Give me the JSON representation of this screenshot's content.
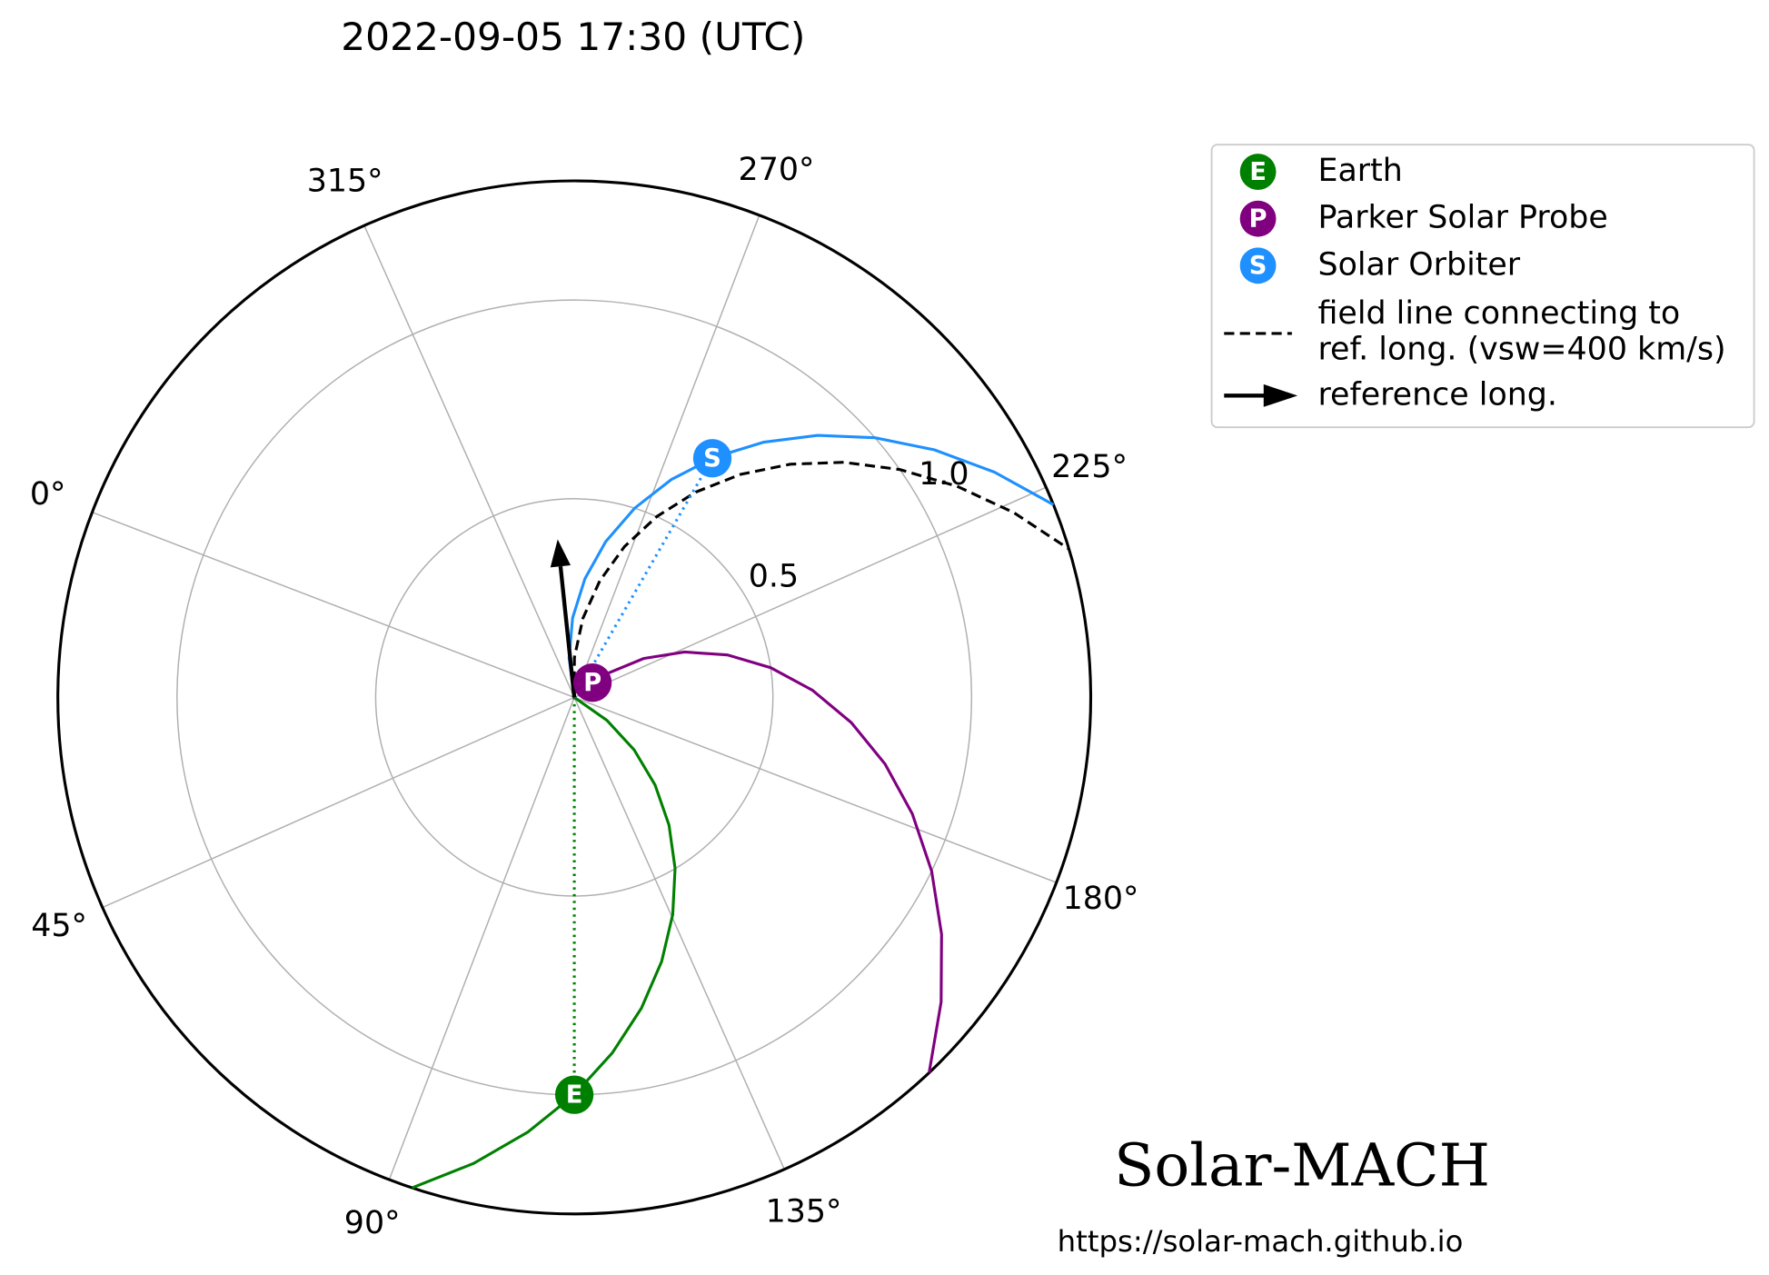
{
  "chart_data": {
    "type": "polar",
    "title": "2022-09-05 17:30 (UTC)",
    "theta_offset": 159,
    "theta_direction": "counterclockwise",
    "rlim": [
      0,
      1.3
    ],
    "rticks": [
      0.5,
      {
        "value": 1,
        "label": "1.0"
      }
    ],
    "thetaticks": [
      {
        "value": 0,
        "label": "0°"
      },
      {
        "value": 45,
        "label": "45°"
      },
      {
        "value": 90,
        "label": "90°"
      },
      {
        "value": 135,
        "label": "135°"
      },
      {
        "value": 180,
        "label": "180°"
      },
      {
        "value": 225,
        "label": "225°"
      },
      {
        "value": 270,
        "label": "270°"
      },
      {
        "value": 315,
        "label": "315°"
      }
    ],
    "grid": true,
    "series": [
      {
        "name": "Earth",
        "marker_label": "E",
        "color": "#008000",
        "r": 1.0,
        "theta": 111,
        "field_line": {
          "r": [
            0,
            0.1,
            0.2,
            0.3,
            0.4,
            0.5,
            0.6,
            0.7,
            0.8,
            0.9,
            1.0,
            1.1,
            1.2,
            1.3
          ],
          "theta": [
            172,
            165.9,
            159.8,
            153.7,
            147.6,
            141.5,
            135.4,
            129.3,
            123.2,
            117.1,
            111,
            104.9,
            98.8,
            92.7
          ]
        }
      },
      {
        "name": "Parker Solar Probe",
        "marker_label": "P",
        "color": "#800080",
        "r": 0.059,
        "theta": 240,
        "field_line": {
          "r": [
            0.059,
            0.1,
            0.2,
            0.3,
            0.4,
            0.5,
            0.6,
            0.7,
            0.8,
            0.9,
            1.0,
            1.1,
            1.2,
            1.3
          ],
          "theta": [
            240,
            237.2,
            230.3,
            223.4,
            216.5,
            209.6,
            202.7,
            195.8,
            188.9,
            182,
            175.1,
            168.2,
            161.3,
            154.4
          ]
        }
      },
      {
        "name": "Solar Orbiter",
        "marker_label": "S",
        "color": "#1e90ff",
        "r": 0.695,
        "theta": 261,
        "field_line": {
          "r": [
            0,
            0.1,
            0.2,
            0.3,
            0.4,
            0.5,
            0.6,
            0.7,
            0.8,
            0.9,
            1.0,
            1.1,
            1.2,
            1.3
          ],
          "theta": [
            304.8,
            298.5,
            292.2,
            285.9,
            279.6,
            273.3,
            267,
            260.7,
            254.4,
            248.1,
            241.8,
            235.5,
            229.2,
            222.9
          ]
        }
      }
    ],
    "reference": {
      "theta": 297,
      "arrow_r": 0.4,
      "color": "#000000",
      "field_line_label": [
        "field line connecting to",
        "ref. long. (vsw=400 km/s)"
      ],
      "arrow_label": "reference long.",
      "field_line": {
        "r": [
          0,
          0.1,
          0.2,
          0.3,
          0.4,
          0.5,
          0.6,
          0.7,
          0.8,
          0.9,
          1.0,
          1.1,
          1.2,
          1.3
        ],
        "theta": [
          297,
          290.9,
          284.8,
          278.7,
          272.6,
          266.5,
          260.4,
          254.3,
          248.2,
          242.1,
          236,
          229.9,
          223.8,
          217.7
        ]
      }
    },
    "watermark": "Solar-MACH",
    "url": "https://solar-mach.github.io"
  }
}
